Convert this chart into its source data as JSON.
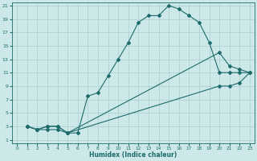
{
  "xlabel": "Humidex (Indice chaleur)",
  "background_color": "#cce8e8",
  "line_color": "#1e6b6b",
  "grid_color": "#aacece",
  "x_min": 0,
  "x_max": 23,
  "y_min": 1,
  "y_max": 21,
  "line1_x": [
    1,
    2,
    3,
    4,
    5,
    6,
    7,
    8,
    9,
    10,
    11,
    12,
    13,
    14,
    15,
    16,
    17,
    18,
    19,
    20,
    21,
    22,
    23
  ],
  "line1_y": [
    3,
    2.5,
    2.5,
    2.5,
    2,
    2,
    7.5,
    8,
    10.5,
    13,
    15.5,
    18.5,
    19.5,
    19.5,
    21,
    20.5,
    19.5,
    18.5,
    15.5,
    11,
    11,
    11,
    11
  ],
  "line2_x": [
    1,
    2,
    3,
    4,
    5,
    20,
    21,
    22,
    23
  ],
  "line2_y": [
    3,
    2.5,
    3,
    3,
    2,
    14,
    12,
    11.5,
    11
  ],
  "line3_x": [
    1,
    2,
    3,
    4,
    5,
    20,
    21,
    22,
    23
  ],
  "line3_y": [
    3,
    2.5,
    3,
    3,
    2,
    9,
    9,
    9.5,
    11
  ]
}
